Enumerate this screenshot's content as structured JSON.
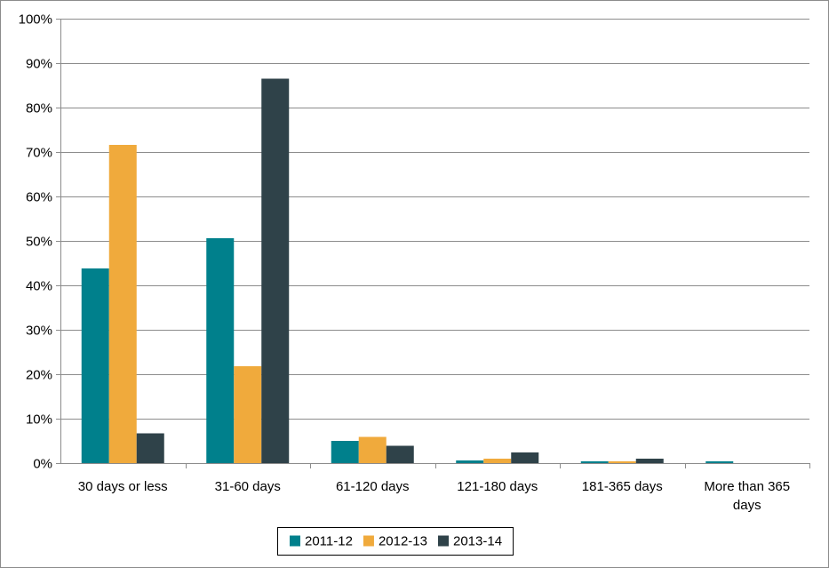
{
  "chart_data": {
    "type": "bar",
    "title": "",
    "xlabel": "",
    "ylabel": "",
    "categories": [
      [
        "30 days or less"
      ],
      [
        "31-60 days"
      ],
      [
        "61-120 days"
      ],
      [
        "121-180 days"
      ],
      [
        "181-365 days"
      ],
      [
        "More than 365",
        "days"
      ]
    ],
    "series": [
      {
        "name": "2011-12",
        "color": "#00808c",
        "values": [
          43.8,
          50.6,
          5.0,
          0.6,
          0.4,
          0.4
        ]
      },
      {
        "name": "2012-13",
        "color": "#f0aa3c",
        "values": [
          71.6,
          21.8,
          5.9,
          1.0,
          0.4,
          0.0
        ]
      },
      {
        "name": "2013-14",
        "color": "#2f4249",
        "values": [
          6.7,
          86.5,
          3.9,
          2.4,
          1.0,
          0.0
        ]
      }
    ],
    "ylim": [
      0,
      100
    ],
    "yticks": [
      0,
      10,
      20,
      30,
      40,
      50,
      60,
      70,
      80,
      90,
      100
    ],
    "ytick_suffix": "%",
    "grid": true,
    "legend_position": "bottom-center"
  }
}
